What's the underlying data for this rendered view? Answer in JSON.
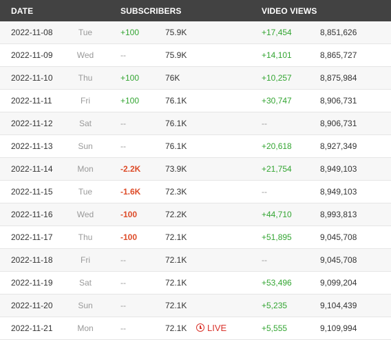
{
  "header": {
    "date": "DATE",
    "subscribers": "SUBSCRIBERS",
    "video_views": "VIDEO VIEWS"
  },
  "live_label": "LIVE",
  "colors": {
    "positive": "#33a532",
    "negative": "#dd4b28",
    "live": "#d9332b",
    "header_bg": "#424242"
  },
  "rows": [
    {
      "date": "2022-11-08",
      "day": "Tue",
      "sub_change": "+100",
      "sub_type": "pos",
      "subs": "75.9K",
      "view_change": "+17,454",
      "view_type": "pos",
      "views": "8,851,626"
    },
    {
      "date": "2022-11-09",
      "day": "Wed",
      "sub_change": "--",
      "sub_type": "none",
      "subs": "75.9K",
      "view_change": "+14,101",
      "view_type": "pos",
      "views": "8,865,727"
    },
    {
      "date": "2022-11-10",
      "day": "Thu",
      "sub_change": "+100",
      "sub_type": "pos",
      "subs": "76K",
      "view_change": "+10,257",
      "view_type": "pos",
      "views": "8,875,984"
    },
    {
      "date": "2022-11-11",
      "day": "Fri",
      "sub_change": "+100",
      "sub_type": "pos",
      "subs": "76.1K",
      "view_change": "+30,747",
      "view_type": "pos",
      "views": "8,906,731"
    },
    {
      "date": "2022-11-12",
      "day": "Sat",
      "sub_change": "--",
      "sub_type": "none",
      "subs": "76.1K",
      "view_change": "--",
      "view_type": "none",
      "views": "8,906,731"
    },
    {
      "date": "2022-11-13",
      "day": "Sun",
      "sub_change": "--",
      "sub_type": "none",
      "subs": "76.1K",
      "view_change": "+20,618",
      "view_type": "pos",
      "views": "8,927,349"
    },
    {
      "date": "2022-11-14",
      "day": "Mon",
      "sub_change": "-2.2K",
      "sub_type": "neg",
      "subs": "73.9K",
      "view_change": "+21,754",
      "view_type": "pos",
      "views": "8,949,103"
    },
    {
      "date": "2022-11-15",
      "day": "Tue",
      "sub_change": "-1.6K",
      "sub_type": "neg",
      "subs": "72.3K",
      "view_change": "--",
      "view_type": "none",
      "views": "8,949,103"
    },
    {
      "date": "2022-11-16",
      "day": "Wed",
      "sub_change": "-100",
      "sub_type": "neg",
      "subs": "72.2K",
      "view_change": "+44,710",
      "view_type": "pos",
      "views": "8,993,813"
    },
    {
      "date": "2022-11-17",
      "day": "Thu",
      "sub_change": "-100",
      "sub_type": "neg",
      "subs": "72.1K",
      "view_change": "+51,895",
      "view_type": "pos",
      "views": "9,045,708"
    },
    {
      "date": "2022-11-18",
      "day": "Fri",
      "sub_change": "--",
      "sub_type": "none",
      "subs": "72.1K",
      "view_change": "--",
      "view_type": "none",
      "views": "9,045,708"
    },
    {
      "date": "2022-11-19",
      "day": "Sat",
      "sub_change": "--",
      "sub_type": "none",
      "subs": "72.1K",
      "view_change": "+53,496",
      "view_type": "pos",
      "views": "9,099,204"
    },
    {
      "date": "2022-11-20",
      "day": "Sun",
      "sub_change": "--",
      "sub_type": "none",
      "subs": "72.1K",
      "view_change": "+5,235",
      "view_type": "pos",
      "views": "9,104,439"
    },
    {
      "date": "2022-11-21",
      "day": "Mon",
      "sub_change": "--",
      "sub_type": "none",
      "subs": "72.1K",
      "live": true,
      "view_change": "+5,555",
      "view_type": "pos",
      "views": "9,109,994"
    }
  ]
}
